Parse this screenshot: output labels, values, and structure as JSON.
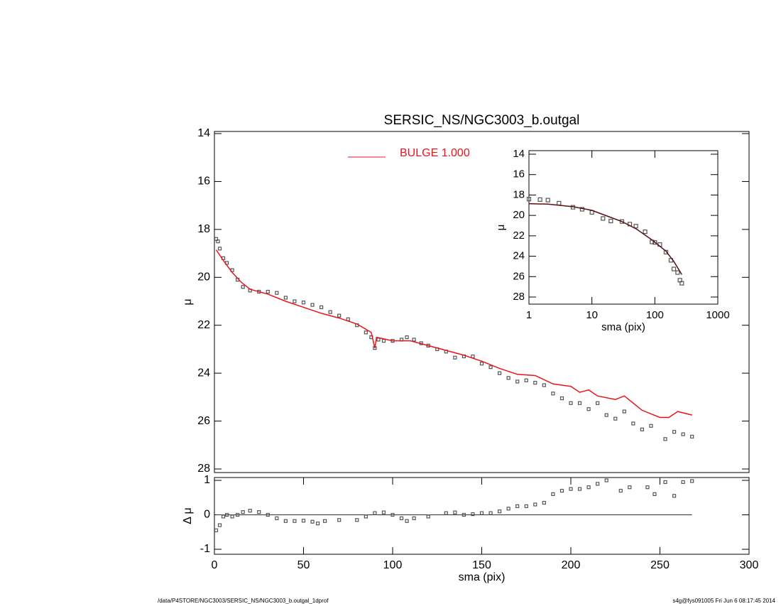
{
  "chart_data": [
    {
      "type": "scatter",
      "title": "SERSIC_NS/NGC3003_b.outgal",
      "ylabel": "μ",
      "xlim": [
        0,
        300
      ],
      "ylim": [
        14,
        28
      ],
      "y_inverted": true,
      "yticks": [
        14,
        16,
        18,
        20,
        22,
        24,
        26,
        28
      ],
      "legend": "top",
      "series": [
        {
          "mode": "markers",
          "color": "#555555",
          "x": [
            1,
            2,
            3,
            5,
            7,
            10,
            13,
            16,
            20,
            25,
            30,
            35,
            40,
            45,
            50,
            55,
            60,
            65,
            70,
            75,
            80,
            85,
            88,
            90,
            92,
            95,
            100,
            105,
            108,
            112,
            116,
            120,
            125,
            130,
            135,
            140,
            145,
            150,
            155,
            160,
            165,
            170,
            175,
            180,
            185,
            190,
            195,
            200,
            205,
            210,
            215,
            220,
            225,
            230,
            235,
            240,
            245,
            253,
            258,
            263,
            268
          ],
          "values": [
            18.4,
            18.5,
            18.8,
            19.2,
            19.4,
            19.7,
            20.1,
            20.4,
            20.55,
            20.6,
            20.6,
            20.65,
            20.85,
            21.0,
            21.05,
            21.15,
            21.25,
            21.45,
            21.6,
            21.75,
            22.0,
            22.3,
            22.5,
            22.95,
            22.6,
            22.65,
            22.65,
            22.6,
            22.5,
            22.6,
            22.75,
            22.85,
            23.0,
            23.1,
            23.35,
            23.3,
            23.3,
            23.6,
            23.75,
            24.0,
            24.2,
            24.35,
            24.3,
            24.4,
            24.5,
            24.85,
            25.05,
            25.25,
            25.25,
            25.5,
            25.25,
            25.75,
            25.9,
            25.6,
            26.1,
            26.35,
            26.2,
            26.75,
            26.45,
            26.55,
            26.65
          ]
        },
        {
          "mode": "line",
          "name": "BULGE  1.000",
          "color": "#e8141c",
          "x": [
            1,
            5,
            10,
            15,
            20,
            30,
            40,
            50,
            60,
            70,
            80,
            88,
            90,
            91,
            100,
            110,
            120,
            130,
            140,
            150,
            160,
            170,
            180,
            190,
            200,
            205,
            210,
            215,
            225,
            230,
            240,
            250,
            255,
            260,
            268
          ],
          "values": [
            18.85,
            19.3,
            19.8,
            20.2,
            20.5,
            20.7,
            21.0,
            21.25,
            21.5,
            21.7,
            21.95,
            22.3,
            22.95,
            22.5,
            22.65,
            22.65,
            22.85,
            23.05,
            23.25,
            23.5,
            23.8,
            24.05,
            24.1,
            24.45,
            24.55,
            24.8,
            24.7,
            24.95,
            25.1,
            24.95,
            25.55,
            25.85,
            25.85,
            25.6,
            25.75
          ]
        }
      ]
    },
    {
      "type": "scatter",
      "xlabel": "sma (pix)",
      "ylabel": "μ",
      "xscale": "log",
      "xlim": [
        1,
        1000
      ],
      "xticks": [
        1,
        10,
        100,
        1000
      ],
      "ylim": [
        14,
        28
      ],
      "y_inverted": true,
      "yticks": [
        14,
        16,
        18,
        20,
        22,
        24,
        26,
        28
      ],
      "series": [
        {
          "mode": "markers",
          "color": "#555555",
          "x": [
            1,
            1.5,
            2,
            3,
            5,
            7,
            10,
            15,
            20,
            30,
            40,
            50,
            70,
            90,
            100,
            120,
            150,
            180,
            200,
            230,
            250,
            268
          ],
          "values": [
            18.4,
            18.45,
            18.5,
            18.8,
            19.2,
            19.4,
            19.7,
            20.3,
            20.55,
            20.6,
            20.85,
            21.05,
            21.6,
            22.6,
            22.65,
            22.85,
            23.6,
            24.4,
            25.25,
            25.6,
            26.35,
            26.65
          ]
        },
        {
          "mode": "line",
          "color": "#5a1010",
          "x": [
            1,
            2,
            5,
            10,
            20,
            30,
            50,
            90,
            150,
            200,
            268
          ],
          "values": [
            18.85,
            18.9,
            19.15,
            19.5,
            20.2,
            20.6,
            21.3,
            22.4,
            23.5,
            24.5,
            25.8
          ]
        }
      ]
    },
    {
      "type": "scatter",
      "xlabel": "sma (pix)",
      "ylabel": "Δ μ",
      "xlim": [
        0,
        300
      ],
      "xticks": [
        0,
        50,
        100,
        150,
        200,
        250,
        300
      ],
      "ylim": [
        -1,
        1
      ],
      "yticks": [
        -1,
        0,
        1
      ],
      "hline": 0,
      "series": [
        {
          "mode": "markers",
          "color": "#555555",
          "x": [
            1,
            3,
            5,
            7,
            10,
            13,
            16,
            20,
            25,
            30,
            35,
            40,
            45,
            50,
            55,
            58,
            62,
            70,
            80,
            85,
            90,
            95,
            100,
            105,
            108,
            112,
            120,
            130,
            135,
            140,
            145,
            150,
            155,
            160,
            165,
            170,
            175,
            180,
            185,
            190,
            195,
            200,
            205,
            210,
            215,
            220,
            228,
            233,
            243,
            247,
            253,
            258,
            263,
            268
          ],
          "values": [
            -0.45,
            -0.3,
            -0.05,
            0.0,
            -0.05,
            0.0,
            0.08,
            0.12,
            0.08,
            0.0,
            -0.1,
            -0.18,
            -0.18,
            -0.17,
            -0.2,
            -0.25,
            -0.18,
            -0.15,
            -0.15,
            -0.05,
            0.05,
            0.07,
            0.0,
            -0.1,
            -0.18,
            -0.1,
            -0.05,
            0.05,
            0.07,
            0.0,
            0.02,
            0.05,
            0.05,
            0.1,
            0.18,
            0.25,
            0.25,
            0.3,
            0.35,
            0.6,
            0.7,
            0.75,
            0.75,
            0.8,
            0.9,
            1.0,
            0.7,
            0.8,
            0.8,
            0.6,
            0.95,
            0.55,
            0.95,
            0.98
          ]
        }
      ]
    }
  ],
  "footer": {
    "left": "/data/P4STORE/NGC3003/SERSIC_NS/NGC3003_b.outgal_1dprof",
    "right": "s4g@fys091005  Fri Jun  6 08:17:45 2014"
  }
}
